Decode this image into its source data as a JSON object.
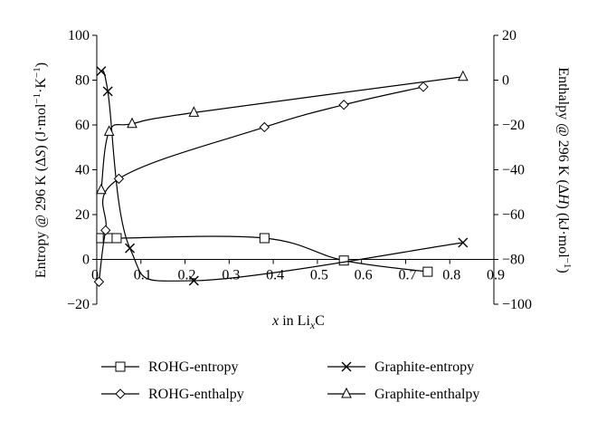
{
  "chart_data": {
    "type": "line",
    "xlabel": "x in Li_x C",
    "xlabel_parts": {
      "italic_x": "x",
      "mid": " in Li",
      "sub": "x",
      "end": "C"
    },
    "ylabel_left": "Entropy @ 296 K (ΔS) (J·mol−1·K−1)",
    "ylabel_left_parts": [
      "Entropy @ 296 K (",
      "Δ",
      "S",
      ") (J·mol",
      "−1",
      "·K",
      "−1",
      ")"
    ],
    "ylabel_right": "Enthalpy @ 296 K (ΔH) (kJ·mol−1)",
    "ylabel_right_parts": [
      "Enthalpy @ 296 K (",
      "Δ",
      "H",
      ") (kJ·mol",
      "−1",
      ")"
    ],
    "xlim": [
      0,
      0.9
    ],
    "ylim_left": [
      -20,
      100
    ],
    "ylim_right": [
      -100,
      20
    ],
    "x_ticks": [
      "0",
      "0.1",
      "0.2",
      "0.3",
      "0.4",
      "0.5",
      "0.6",
      "0.7",
      "0.8",
      "0.9"
    ],
    "y_ticks_left": [
      "−20",
      "0",
      "20",
      "40",
      "60",
      "80",
      "100"
    ],
    "y_ticks_right": [
      "−100",
      "−80",
      "−60",
      "−40",
      "−20",
      "0",
      "20"
    ],
    "legend_position": "bottom",
    "series": [
      {
        "name": "ROHG-entropy",
        "axis": "left",
        "marker": "square",
        "x": [
          0.01,
          0.025,
          0.045,
          0.38,
          0.56,
          0.75
        ],
        "y": [
          9.5,
          9.5,
          9.5,
          9.5,
          -0.5,
          -5.5
        ]
      },
      {
        "name": "Graphite-entropy",
        "axis": "left",
        "marker": "x",
        "x": [
          0.01,
          0.025,
          0.075,
          0.22,
          0.83
        ],
        "y": [
          84,
          75,
          5,
          -9.5,
          7.5
        ]
      },
      {
        "name": "ROHG-enthalpy",
        "axis": "right",
        "marker": "diamond",
        "x": [
          0.005,
          0.02,
          0.05,
          0.38,
          0.56,
          0.74,
          0.83
        ],
        "y": [
          -90,
          -67,
          -44,
          -21,
          -11,
          -3,
          null
        ]
      },
      {
        "name": "Graphite-enthalpy",
        "axis": "right",
        "marker": "triangle",
        "x": [
          0.01,
          0.028,
          0.08,
          0.22,
          0.83
        ],
        "y": [
          -49,
          -23,
          -19.5,
          -14.5,
          1.5
        ]
      }
    ]
  }
}
